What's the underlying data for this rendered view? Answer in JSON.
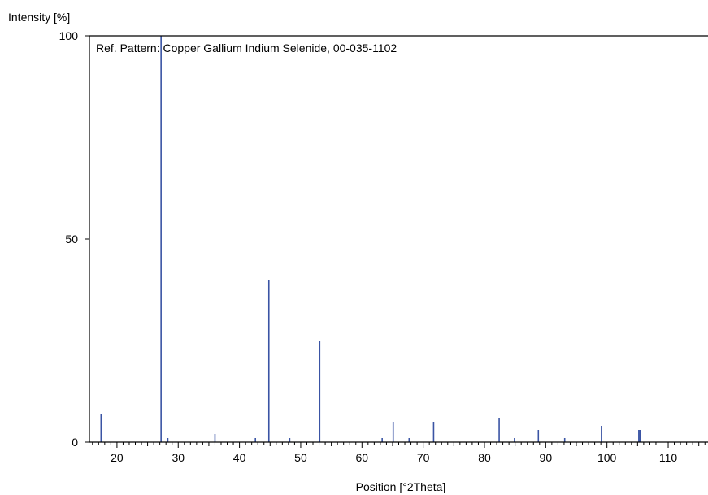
{
  "chart_data": {
    "type": "bar",
    "ylabel": "Intensity [%]",
    "xlabel": "Position [°2Theta]",
    "annotation": "Ref. Pattern: Copper Gallium Indium Selenide, 00-035-1102",
    "xlim": [
      15.5,
      116.5
    ],
    "ylim": [
      0,
      100
    ],
    "x_ticks": [
      20,
      30,
      40,
      50,
      60,
      70,
      80,
      90,
      100,
      110
    ],
    "y_ticks": [
      0,
      50,
      100
    ],
    "grid": false,
    "bar_color": "#3a54a4",
    "peaks": [
      {
        "x": 17.4,
        "y": 7
      },
      {
        "x": 27.2,
        "y": 100
      },
      {
        "x": 28.3,
        "y": 1
      },
      {
        "x": 36.0,
        "y": 2
      },
      {
        "x": 42.6,
        "y": 1
      },
      {
        "x": 44.8,
        "y": 40
      },
      {
        "x": 48.2,
        "y": 1
      },
      {
        "x": 53.1,
        "y": 25
      },
      {
        "x": 63.3,
        "y": 1
      },
      {
        "x": 65.1,
        "y": 5
      },
      {
        "x": 67.7,
        "y": 1
      },
      {
        "x": 71.7,
        "y": 5
      },
      {
        "x": 82.4,
        "y": 6
      },
      {
        "x": 84.9,
        "y": 1
      },
      {
        "x": 88.8,
        "y": 3
      },
      {
        "x": 93.1,
        "y": 1
      },
      {
        "x": 99.1,
        "y": 4
      },
      {
        "x": 105.2,
        "y": 3
      },
      {
        "x": 105.4,
        "y": 3
      }
    ]
  }
}
